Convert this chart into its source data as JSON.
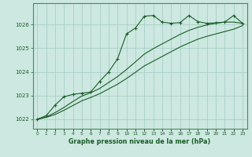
{
  "title": "Graphe pression niveau de la mer (hPa)",
  "background_color": "#cce8e0",
  "grid_color": "#aacfc8",
  "line_color": "#1a5c28",
  "ylim": [
    1021.6,
    1026.9
  ],
  "xlim": [
    -0.5,
    23.5
  ],
  "yticks": [
    1022,
    1023,
    1024,
    1025,
    1026
  ],
  "xtick_labels": [
    "0",
    "1",
    "2",
    "3",
    "4",
    "5",
    "6",
    "7",
    "8",
    "9",
    "10",
    "11",
    "12",
    "13",
    "14",
    "15",
    "16",
    "17",
    "18",
    "19",
    "20",
    "21",
    "22",
    "23"
  ],
  "y_smooth1": [
    1022.0,
    1022.08,
    1022.2,
    1022.38,
    1022.58,
    1022.78,
    1022.92,
    1023.08,
    1023.28,
    1023.48,
    1023.72,
    1023.98,
    1024.25,
    1024.45,
    1024.65,
    1024.85,
    1025.05,
    1025.22,
    1025.38,
    1025.5,
    1025.6,
    1025.7,
    1025.8,
    1025.95
  ],
  "y_smooth2": [
    1022.0,
    1022.1,
    1022.28,
    1022.5,
    1022.75,
    1022.98,
    1023.12,
    1023.3,
    1023.55,
    1023.8,
    1024.1,
    1024.42,
    1024.75,
    1024.98,
    1025.18,
    1025.38,
    1025.58,
    1025.75,
    1025.88,
    1025.98,
    1026.05,
    1026.1,
    1026.1,
    1026.05
  ],
  "y_zigzag": [
    1022.0,
    1022.15,
    1022.6,
    1022.95,
    1023.05,
    1023.1,
    1023.15,
    1023.6,
    1024.0,
    1024.55,
    1025.6,
    1025.85,
    1026.35,
    1026.38,
    1026.1,
    1026.05,
    1026.08,
    1026.38,
    1026.12,
    1026.05,
    1026.07,
    1026.1,
    1026.38,
    1026.05
  ]
}
